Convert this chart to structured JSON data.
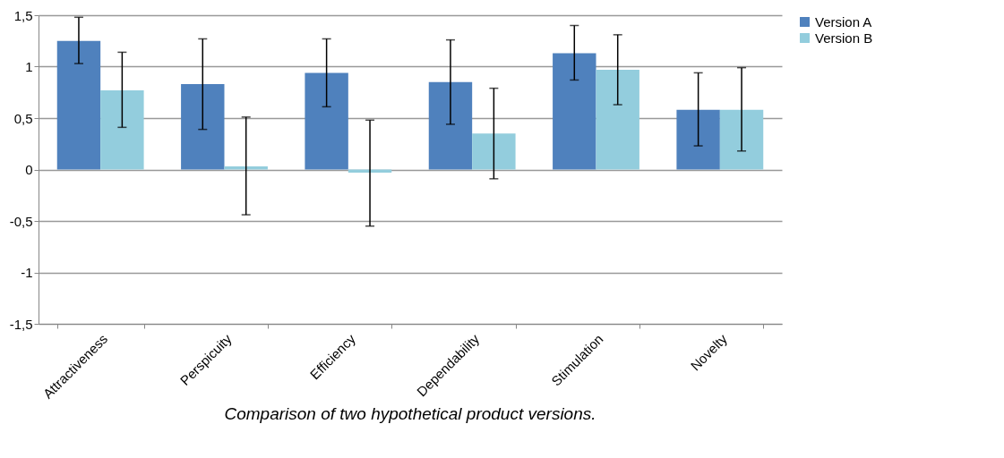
{
  "chart_data": {
    "type": "bar",
    "title": "Comparison of two hypothetical product versions.",
    "categories": [
      "Attractiveness",
      "Perspicuity",
      "Efficiency",
      "Dependability",
      "Stimulation",
      "Novelty"
    ],
    "series": [
      {
        "name": "Version A",
        "color": "#4f81bd",
        "values": [
          1.25,
          0.83,
          0.94,
          0.85,
          1.13,
          0.58
        ],
        "errors": [
          [
            1.03,
            1.48
          ],
          [
            0.39,
            1.27
          ],
          [
            0.61,
            1.27
          ],
          [
            0.44,
            1.26
          ],
          [
            0.87,
            1.4
          ],
          [
            0.23,
            0.94
          ]
        ]
      },
      {
        "name": "Version B",
        "color": "#93cddd",
        "values": [
          0.77,
          0.03,
          -0.03,
          0.35,
          0.97,
          0.58
        ],
        "errors": [
          [
            0.41,
            1.14
          ],
          [
            -0.44,
            0.51
          ],
          [
            -0.55,
            0.48
          ],
          [
            -0.09,
            0.79
          ],
          [
            0.63,
            1.31
          ],
          [
            0.18,
            0.99
          ]
        ]
      }
    ],
    "ylim": [
      -1.5,
      1.5
    ],
    "yticks": [
      {
        "value": -1.5,
        "label": "-1,5"
      },
      -1,
      {
        "value": -0.5,
        "label": "-0,5"
      },
      0,
      {
        "value": 0.5,
        "label": "0,5"
      },
      1,
      {
        "value": 1.5,
        "label": "1,5"
      }
    ],
    "grid": "y",
    "legend": "right"
  }
}
